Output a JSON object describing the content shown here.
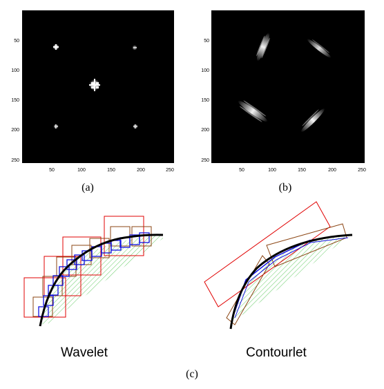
{
  "panels": {
    "a": {
      "caption": "(a)",
      "x_ticks": [
        "50",
        "100",
        "150",
        "200",
        "250"
      ],
      "y_ticks": [
        "50",
        "100",
        "150",
        "200",
        "250"
      ]
    },
    "b": {
      "caption": "(b)",
      "x_ticks": [
        "50",
        "100",
        "150",
        "200",
        "250"
      ],
      "y_ticks": [
        "50",
        "100",
        "150",
        "200",
        "250"
      ]
    },
    "c": {
      "caption": "(c)",
      "left_label": "Wavelet",
      "right_label": "Contourlet"
    }
  },
  "colors": {
    "background": "#ffffff",
    "image_bg": "#000000",
    "curve": "#000000",
    "red_box": "#e00000",
    "brown_box": "#8b4513",
    "blue_box": "#1010e0",
    "hatch": "#66cc66"
  }
}
